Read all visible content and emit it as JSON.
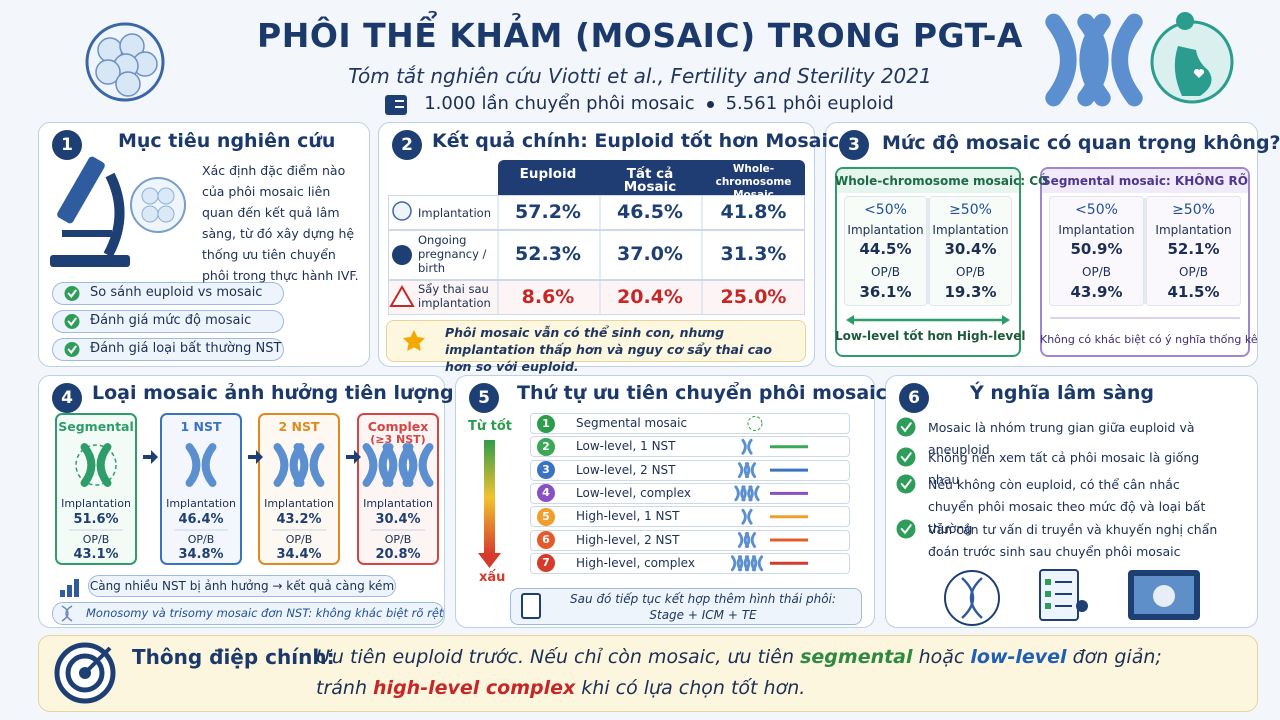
{
  "header": {
    "title": "PHÔI THỂ KHẢM (MOSAIC) TRONG PGT-A",
    "subtitle": "Tóm tắt nghiên cứu Viotti et al., Fertility and Sterility 2021",
    "stats": [
      "1.000 lần chuyển phôi mosaic",
      "5.561 phôi euploid"
    ]
  },
  "section1": {
    "number": "1",
    "title": "Mục tiêu nghiên cứu",
    "text": "Xác định đặc điểm nào của phôi mosaic liên quan đến kết quả lâm sàng, từ đó xây dựng hệ thống ưu tiên chuyển phôi trong thực hành IVF.",
    "items": [
      "So sánh euploid vs mosaic",
      "Đánh giá mức độ mosaic",
      "Đánh giá loại bất thường NST"
    ]
  },
  "section2": {
    "number": "2",
    "title": "Kết quả chính: Euploid tốt hơn Mosaic",
    "columns": [
      "Euploid",
      "Tất cả Mosaic",
      "Whole-chromosome Mosaic"
    ],
    "rows": [
      {
        "label": "Implantation",
        "values": [
          "57.2%",
          "46.5%",
          "41.8%"
        ]
      },
      {
        "label": "Ongoing pregnancy / birth",
        "values": [
          "52.3%",
          "37.0%",
          "31.3%"
        ]
      },
      {
        "label": "Sẩy thai sau implantation",
        "values": [
          "8.6%",
          "20.4%",
          "25.0%"
        ]
      }
    ],
    "note": "Phôi mosaic vẫn có thể sinh con, nhưng implantation thấp hơn và nguy cơ sẩy thai cao hơn so với euploid."
  },
  "section3": {
    "number": "3",
    "title": "Mức độ mosaic có quan trọng không?",
    "groups": [
      {
        "title": "Whole-chromosome mosaic: CÓ",
        "columns": [
          {
            "level": "<50%",
            "implantation_label": "Implantation",
            "implantation": "44.5%",
            "opb_label": "OP/B",
            "opb": "36.1%"
          },
          {
            "level": "≥50%",
            "implantation_label": "Implantation",
            "implantation": "30.4%",
            "opb_label": "OP/B",
            "opb": "19.3%"
          }
        ],
        "footer": "Low-level tốt hơn High-level"
      },
      {
        "title": "Segmental mosaic: KHÔNG RÕ",
        "columns": [
          {
            "level": "<50%",
            "implantation_label": "Implantation",
            "implantation": "50.9%",
            "opb_label": "OP/B",
            "opb": "43.9%"
          },
          {
            "level": "≥50%",
            "implantation_label": "Implantation",
            "implantation": "52.1%",
            "opb_label": "OP/B",
            "opb": "41.5%"
          }
        ],
        "footer": "Không có khác biệt có ý nghĩa thống kê"
      }
    ]
  },
  "section4": {
    "number": "4",
    "title": "Loại mosaic ảnh hưởng tiên lượng",
    "types": [
      {
        "name": "Segmental",
        "implantation_label": "Implantation",
        "implantation": "51.6%",
        "opb_label": "OP/B",
        "opb": "43.1%"
      },
      {
        "name": "1 NST",
        "implantation_label": "Implantation",
        "implantation": "46.4%",
        "opb_label": "OP/B",
        "opb": "34.8%"
      },
      {
        "name": "2 NST",
        "implantation_label": "Implantation",
        "implantation": "43.2%",
        "opb_label": "OP/B",
        "opb": "34.4%"
      },
      {
        "name": "Complex",
        "detail": "(≥3 NST)",
        "implantation_label": "Implantation",
        "implantation": "30.4%",
        "opb_label": "OP/B",
        "opb": "20.8%"
      }
    ],
    "notes": [
      "Càng nhiều NST bị ảnh hưởng → kết quả càng kém",
      "Monosomy và trisomy mosaic đơn NST: không khác biệt rõ rệt"
    ]
  },
  "section5": {
    "number": "5",
    "title": "Thứ tự ưu tiên chuyển phôi mosaic",
    "top_label": "Từ tốt",
    "bottom_label": "xấu",
    "items": [
      {
        "rank": "1",
        "label": "Segmental mosaic"
      },
      {
        "rank": "2",
        "label": "Low-level, 1 NST"
      },
      {
        "rank": "3",
        "label": "Low-level, 2 NST"
      },
      {
        "rank": "4",
        "label": "Low-level, complex"
      },
      {
        "rank": "5",
        "label": "High-level, 1 NST"
      },
      {
        "rank": "6",
        "label": "High-level, 2 NST"
      },
      {
        "rank": "7",
        "label": "High-level, complex"
      }
    ],
    "note": [
      "Sau đó tiếp tục kết hợp thêm hình thái phôi:",
      "Stage + ICM + TE"
    ]
  },
  "section6": {
    "number": "6",
    "title": "Ý nghĩa lâm sàng",
    "items": [
      "Mosaic là nhóm trung gian giữa euploid và aneuploid",
      "Không nên xem tất cả phôi mosaic là giống nhau",
      "Nếu không còn euploid, có thể cân nhắc chuyển phôi mosaic theo mức độ và loại bất thường",
      "Vẫn cần tư vấn di truyền và khuyến nghị chẩn đoán trước sinh sau chuyển phôi mosaic"
    ]
  },
  "message": {
    "label": "Thông điệp chính:",
    "parts": [
      "Ưu tiên euploid trước. Nếu chỉ còn mosaic, ưu tiên ",
      "segmental",
      " hoặc ",
      "low-level",
      " đơn giản;",
      "tránh ",
      "high-level complex",
      " khi có lựa chọn tốt hơn."
    ]
  }
}
